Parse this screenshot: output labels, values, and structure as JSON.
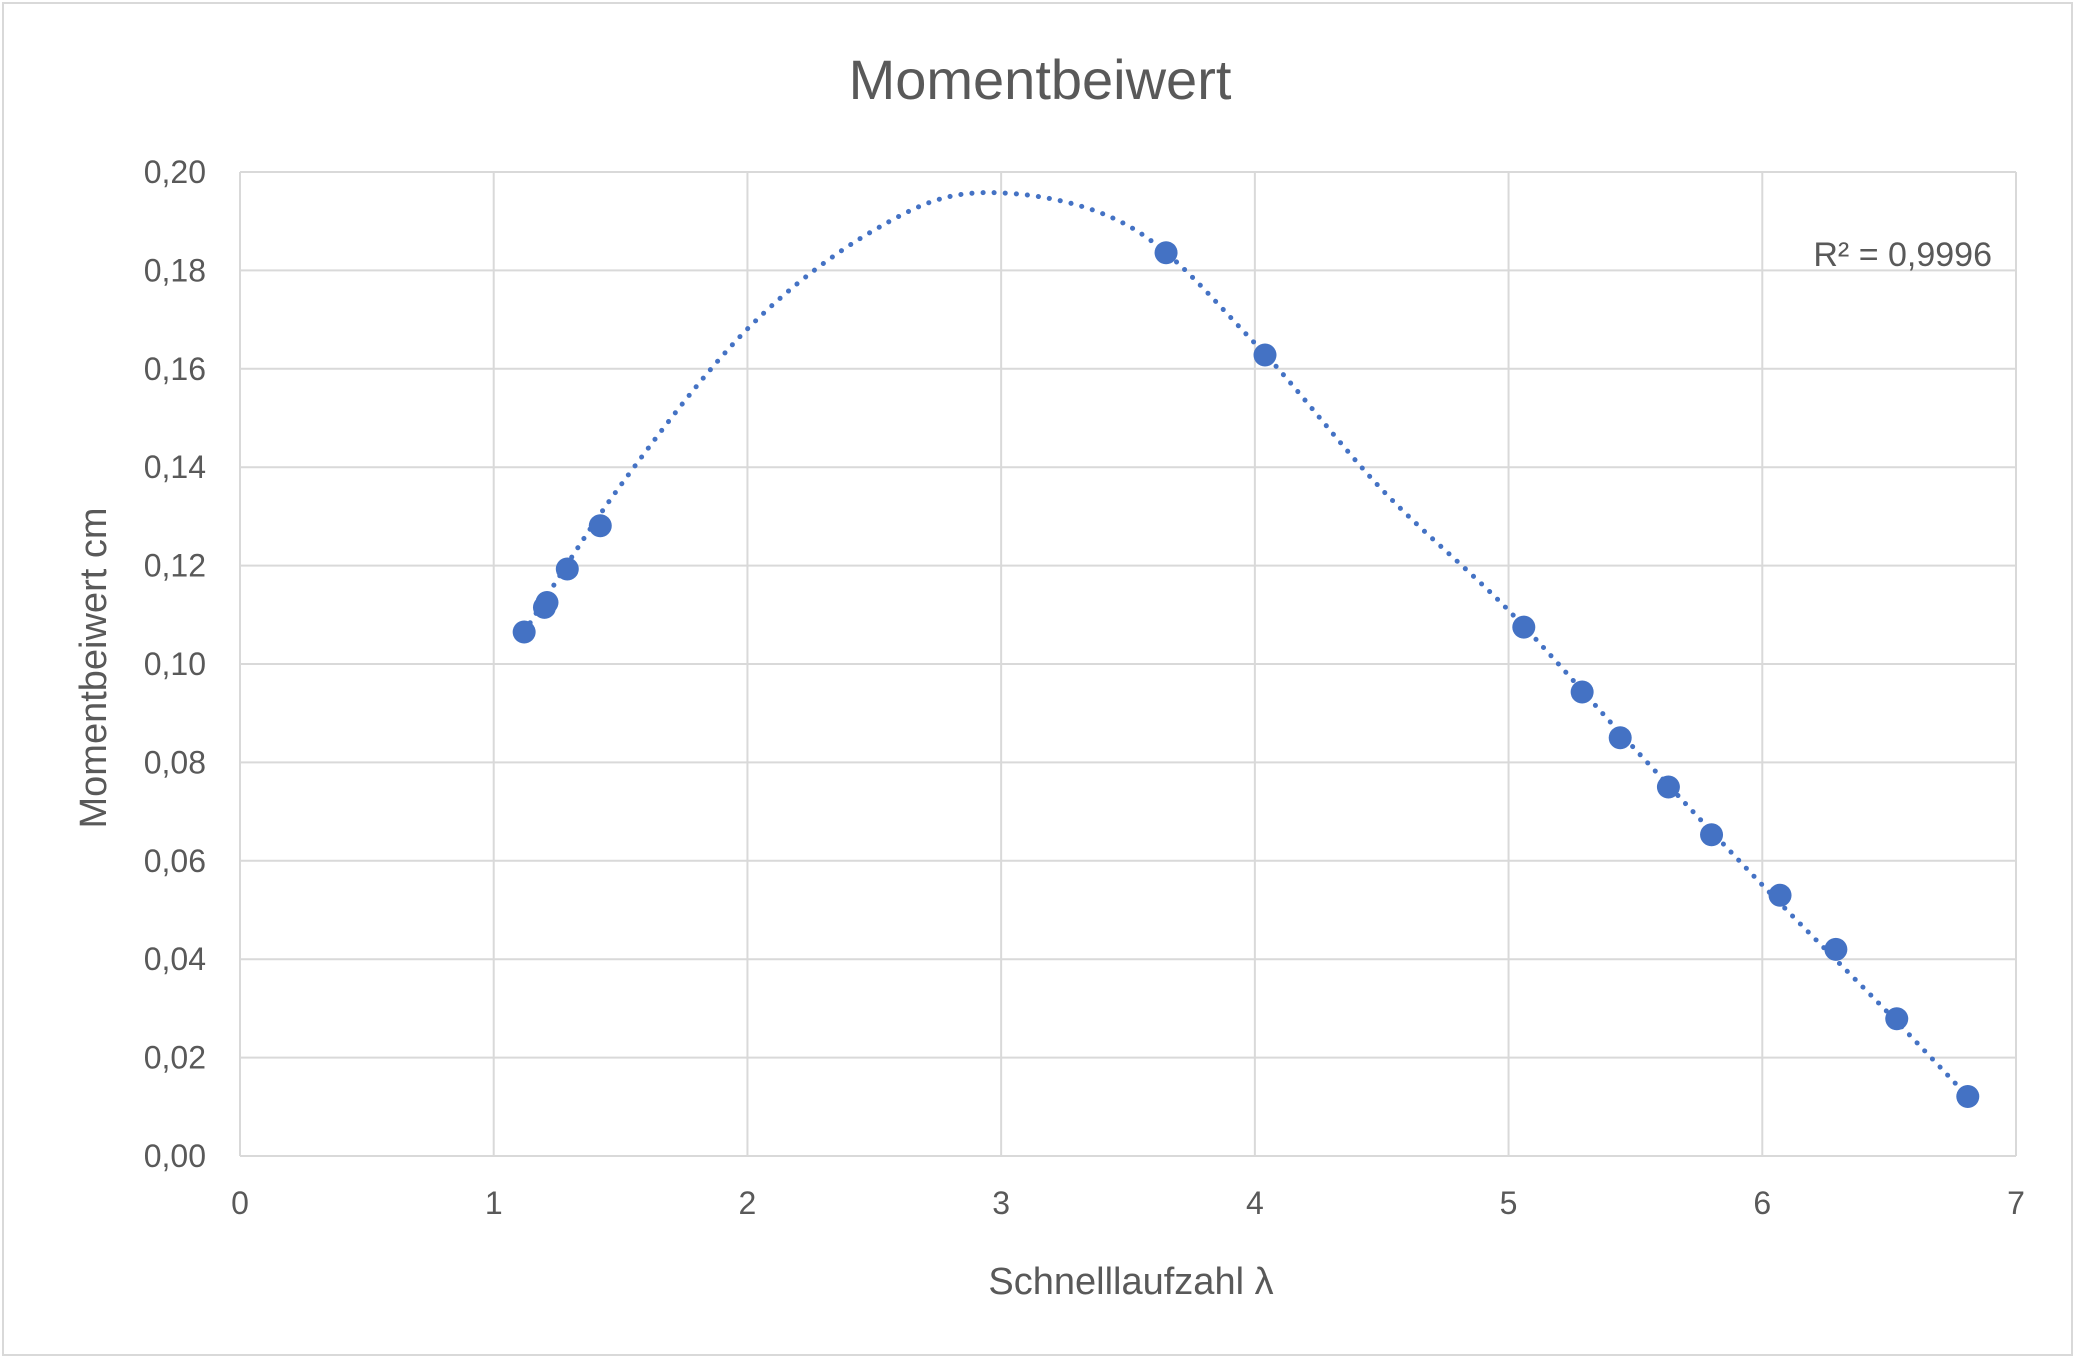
{
  "chart_data": {
    "type": "scatter",
    "title": "Momentbeiwert",
    "xlabel": "Schnelllaufzahl λ",
    "ylabel": "Momentbeiwert cm",
    "xlim": [
      0,
      7
    ],
    "ylim": [
      0,
      0.2
    ],
    "x_ticks": [
      "0",
      "1",
      "2",
      "3",
      "4",
      "5",
      "6",
      "7"
    ],
    "y_ticks": [
      "0,00",
      "0,02",
      "0,04",
      "0,06",
      "0,08",
      "0,10",
      "0,12",
      "0,14",
      "0,16",
      "0,18",
      "0,20"
    ],
    "grid": true,
    "legend": "none",
    "colors": {
      "marker": "#4472c4",
      "trendline": "#4472c4",
      "grid": "#d9d9d9"
    },
    "series": [
      {
        "points": [
          [
            1.12,
            0.1065
          ],
          [
            1.2,
            0.1115
          ],
          [
            1.21,
            0.1125
          ],
          [
            1.29,
            0.1193
          ],
          [
            1.42,
            0.1281
          ],
          [
            3.65,
            0.1836
          ],
          [
            4.04,
            0.1628
          ],
          [
            5.06,
            0.1075
          ],
          [
            5.29,
            0.0943
          ],
          [
            5.44,
            0.085
          ],
          [
            5.63,
            0.075
          ],
          [
            5.8,
            0.0653
          ],
          [
            6.07,
            0.053
          ],
          [
            6.29,
            0.042
          ],
          [
            6.53,
            0.0279
          ],
          [
            6.81,
            0.0121
          ]
        ]
      }
    ],
    "trendline": {
      "style": "dotted",
      "x_range": [
        1.12,
        6.81
      ],
      "points": [
        [
          1.12,
          0.1065
        ],
        [
          1.5,
          0.1363
        ],
        [
          2.0,
          0.1681
        ],
        [
          2.5,
          0.1882
        ],
        [
          2.93,
          0.1958
        ],
        [
          3.5,
          0.1891
        ],
        [
          4.0,
          0.1652
        ],
        [
          4.5,
          0.1355
        ],
        [
          5.0,
          0.1109
        ],
        [
          5.5,
          0.0826
        ],
        [
          6.0,
          0.0551
        ],
        [
          6.5,
          0.0289
        ],
        [
          6.81,
          0.0121
        ]
      ],
      "r_squared_label": "R² = 0,9996"
    }
  }
}
